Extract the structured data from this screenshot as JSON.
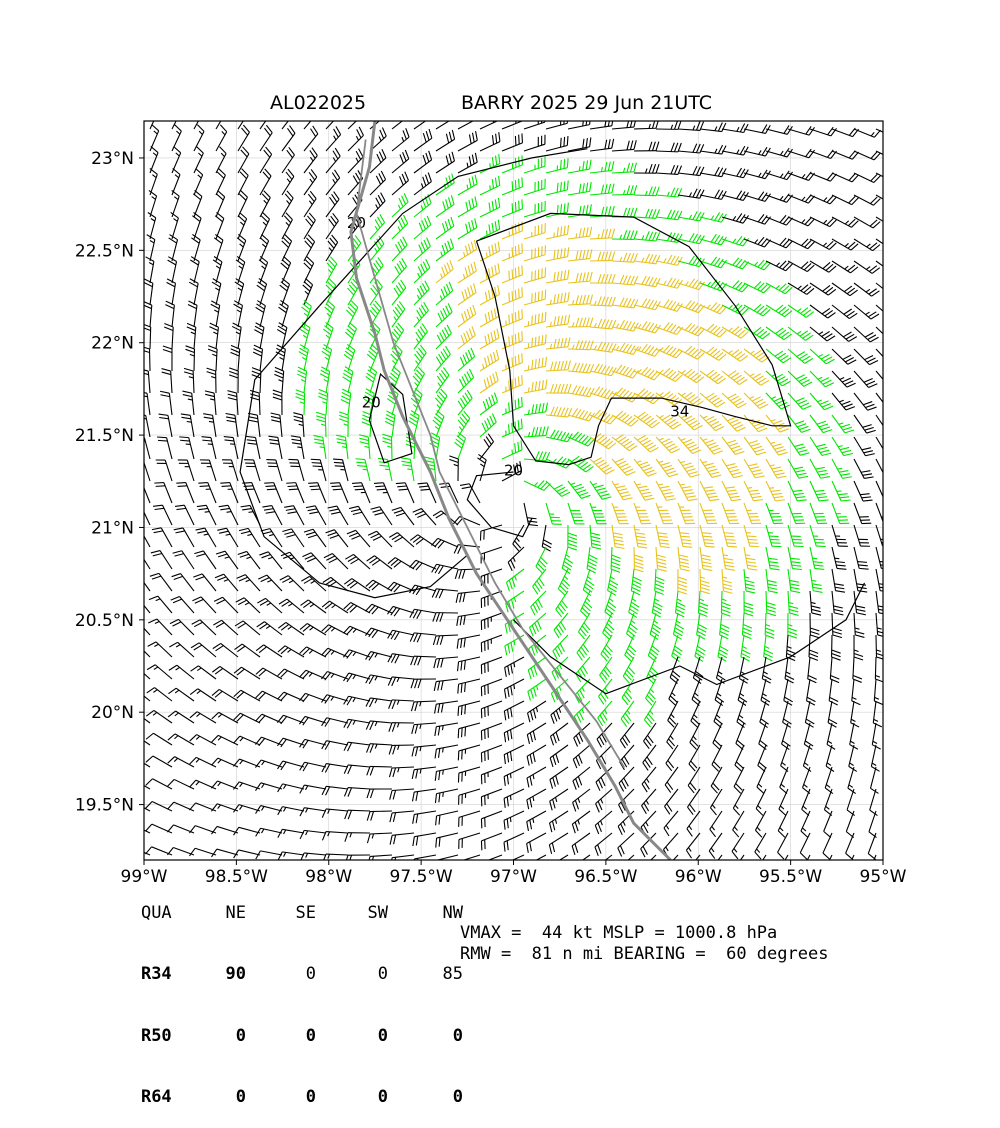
{
  "title": {
    "storm_id": "AL022025",
    "storm_desc": "BARRY 2025 29 Jun 21UTC"
  },
  "map": {
    "lon_range": [
      -99,
      -95
    ],
    "lat_range": [
      19.2,
      23.2
    ],
    "x_ticks": [
      "99°W",
      "98.5°W",
      "98°W",
      "97.5°W",
      "97°W",
      "96.5°W",
      "96°W",
      "95.5°W",
      "95°W"
    ],
    "y_ticks": [
      "23°N",
      "22.5°N",
      "22°N",
      "21.5°N",
      "21°N",
      "20.5°N",
      "20°N",
      "19.5°N"
    ],
    "contour_labels": [
      "20",
      "20",
      "20",
      "34"
    ],
    "colors": {
      "barb_low": "#000000",
      "barb_34": "#00e600",
      "barb_50": "#e8c21c",
      "track": "#888888",
      "contour": "#000000",
      "grid": "#d0d0d0"
    }
  },
  "radii_table": {
    "headers": [
      "QUA",
      "NE",
      "SE",
      "SW",
      "NW"
    ],
    "rows": [
      {
        "label": "R34",
        "values": [
          "90",
          "0",
          "0",
          "85"
        ]
      },
      {
        "label": "R50",
        "values": [
          "0",
          "0",
          "0",
          "0"
        ]
      },
      {
        "label": "R64",
        "values": [
          "0",
          "0",
          "0",
          "0"
        ]
      }
    ]
  },
  "stats": {
    "line1": "VMAX =  44 kt MSLP = 1000.8 hPa",
    "line2": "RMW =  81 n mi BEARING =  60 degrees"
  }
}
